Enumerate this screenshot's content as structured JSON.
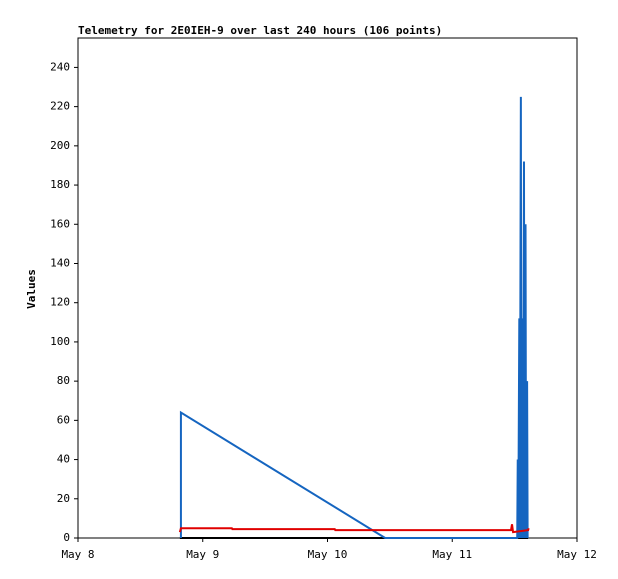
{
  "chart_data": {
    "type": "line",
    "title": "Telemetry for 2E0IEH-9 over last 240 hours (106 points)",
    "y_label": "Values",
    "xlim": [
      0,
      96
    ],
    "xticks": [
      {
        "value": 0,
        "label": "May 8"
      },
      {
        "value": 24,
        "label": "May 9"
      },
      {
        "value": 48,
        "label": "May 10"
      },
      {
        "value": 72,
        "label": "May 11"
      },
      {
        "value": 96,
        "label": "May 12"
      }
    ],
    "ylim": [
      0,
      255
    ],
    "yticks": [
      0,
      20,
      40,
      60,
      80,
      100,
      120,
      140,
      160,
      180,
      200,
      220,
      240
    ],
    "grid": false,
    "series": [
      {
        "color": "#000000",
        "x": [
          19.6,
          86.6
        ],
        "values": [
          0,
          0
        ]
      },
      {
        "color": "#1565c0",
        "x": [
          19.8,
          19.8,
          59.1,
          84.5,
          84.6,
          84.7,
          84.9,
          85.0,
          85.2,
          85.3,
          85.5,
          85.6,
          85.8,
          85.9,
          86.1,
          86.2,
          86.4,
          86.5
        ],
        "values": [
          0,
          64,
          0,
          0,
          40,
          0,
          112,
          0,
          225,
          0,
          112,
          0,
          192,
          0,
          160,
          0,
          80,
          0
        ]
      },
      {
        "color": "#e00000",
        "x": [
          19.6,
          19.8,
          29.6,
          29.7,
          49.4,
          49.5,
          83.3,
          83.5,
          83.7,
          86.6,
          86.7
        ],
        "values": [
          3,
          5,
          5,
          4.5,
          4.5,
          4,
          4,
          7,
          3,
          4,
          5
        ]
      }
    ]
  }
}
